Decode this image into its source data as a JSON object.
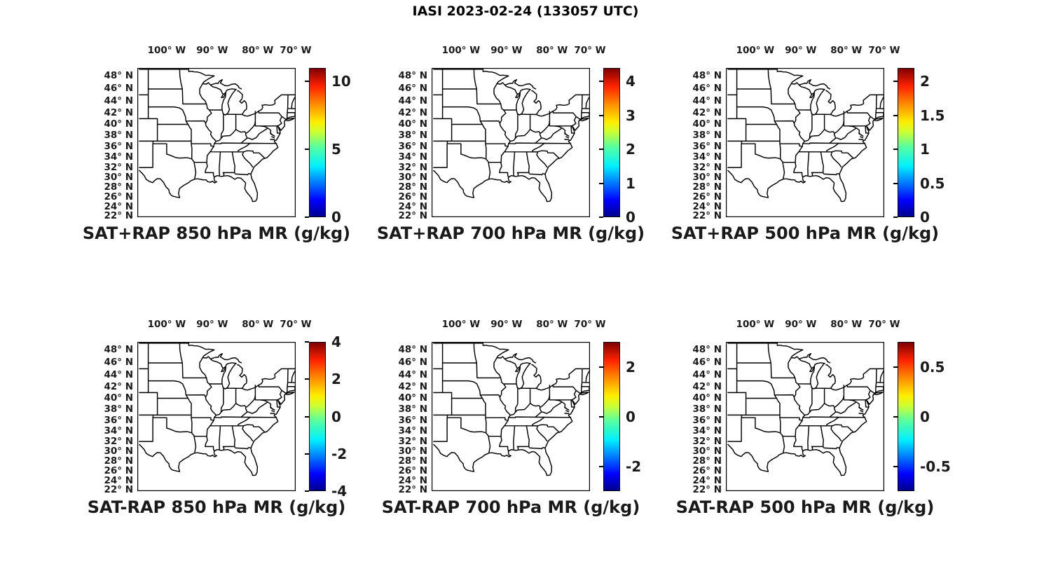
{
  "figure_title": "IASI 2023-02-24 (133057 UTC)",
  "colors": {
    "line": "#000000",
    "background": "#ffffff",
    "text": "#1a1a1a",
    "jet_stops": [
      [
        0,
        "#00008f"
      ],
      [
        11,
        "#0000ff"
      ],
      [
        34,
        "#00efff"
      ],
      [
        47,
        "#56ffa0"
      ],
      [
        57,
        "#caff35"
      ],
      [
        64,
        "#ffee00"
      ],
      [
        75,
        "#ff9400"
      ],
      [
        88,
        "#ff2200"
      ],
      [
        100,
        "#7f0000"
      ]
    ]
  },
  "axes": {
    "lon_labels": [
      "100° W",
      "90° W",
      "80° W",
      "70° W"
    ],
    "lon_values_deg_w": [
      100,
      90,
      80,
      70
    ],
    "lat_labels": [
      "48° N",
      "46° N",
      "44° N",
      "42° N",
      "40° N",
      "38° N",
      "36° N",
      "34° N",
      "32° N",
      "30° N",
      "28° N",
      "26° N",
      "24° N",
      "22° N"
    ],
    "lat_values_deg_n": [
      48,
      46,
      44,
      42,
      40,
      38,
      36,
      34,
      32,
      30,
      28,
      26,
      24,
      22
    ]
  },
  "chart_data": {
    "type": "map",
    "title": "IASI 2023-02-24 (133057 UTC)",
    "rows": 2,
    "cols": 3,
    "map_region": "Central and eastern United States with state boundaries",
    "lon_range_deg_w": [
      106.5,
      71.5
    ],
    "lat_range_deg_n": [
      21.8,
      49.2
    ],
    "lon_ticks_deg_w": [
      100,
      90,
      80,
      70
    ],
    "lat_ticks_deg_n": [
      48,
      46,
      44,
      42,
      40,
      38,
      36,
      34,
      32,
      30,
      28,
      26,
      24,
      22
    ],
    "colormap": "jet",
    "panels": [
      {
        "title": "SAT+RAP 850 hPa MR (g/kg)",
        "colorbar": {
          "min": 0,
          "max": 11,
          "ticks": [
            0,
            5,
            10
          ],
          "tick_labels": [
            "0",
            "5",
            "10"
          ]
        }
      },
      {
        "title": "SAT+RAP 700 hPa MR (g/kg)",
        "colorbar": {
          "min": 0,
          "max": 4.4,
          "ticks": [
            0,
            1,
            2,
            3,
            4
          ],
          "tick_labels": [
            "0",
            "1",
            "2",
            "3",
            "4"
          ]
        }
      },
      {
        "title": "SAT+RAP 500 hPa MR (g/kg)",
        "colorbar": {
          "min": 0,
          "max": 2.2,
          "ticks": [
            0,
            0.5,
            1,
            1.5,
            2
          ],
          "tick_labels": [
            "0",
            "0.5",
            "1",
            "1.5",
            "2"
          ]
        }
      },
      {
        "title": "SAT-RAP 850 hPa MR (g/kg)",
        "colorbar": {
          "min": -4,
          "max": 4,
          "ticks": [
            -4,
            -2,
            0,
            2,
            4
          ],
          "tick_labels": [
            "-4",
            "-2",
            "0",
            "2",
            "4"
          ]
        }
      },
      {
        "title": "SAT-RAP 700 hPa MR (g/kg)",
        "colorbar": {
          "min": -3,
          "max": 3,
          "ticks": [
            -2,
            0,
            2
          ],
          "tick_labels": [
            "-2",
            "0",
            "2"
          ]
        }
      },
      {
        "title": "SAT-RAP 500 hPa MR (g/kg)",
        "colorbar": {
          "min": -0.75,
          "max": 0.75,
          "ticks": [
            -0.5,
            0,
            0.5
          ],
          "tick_labels": [
            "-0.5",
            "0",
            "0.5"
          ]
        }
      }
    ],
    "note": "All six panels display the same blank state-outline base map; no gridded field values are plotted inside the maps."
  }
}
